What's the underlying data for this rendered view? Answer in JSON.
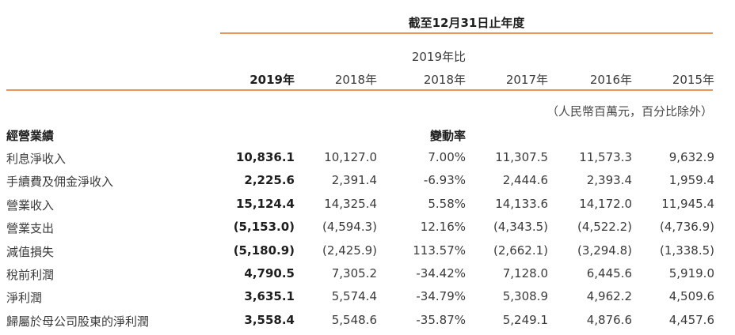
{
  "header": {
    "period": "截至12月31日止年度",
    "compare_top": "2019年比",
    "columns": [
      "2019年",
      "2018年",
      "2018年",
      "2017年",
      "2016年",
      "2015年"
    ],
    "unit": "（人民幣百萬元，百分比除外）"
  },
  "section": {
    "title": "經營業績",
    "change_label": "變動率"
  },
  "rows": [
    {
      "label": "利息淨收入",
      "v2019": "10,836.1",
      "v2018": "10,127.0",
      "change": "7.00%",
      "v2017": "11,307.5",
      "v2016": "11,573.3",
      "v2015": "9,632.9"
    },
    {
      "label": "手續費及佣金淨收入",
      "v2019": "2,225.6",
      "v2018": "2,391.4",
      "change": "-6.93%",
      "v2017": "2,444.6",
      "v2016": "2,393.4",
      "v2015": "1,959.4"
    },
    {
      "label": "營業收入",
      "v2019": "15,124.4",
      "v2018": "14,325.4",
      "change": "5.58%",
      "v2017": "14,133.6",
      "v2016": "14,172.0",
      "v2015": "11,945.4"
    },
    {
      "label": "營業支出",
      "v2019": "(5,153.0)",
      "v2018": "(4,594.3)",
      "change": "12.16%",
      "v2017": "(4,343.5)",
      "v2016": "(4,522.2)",
      "v2015": "(4,736.9)"
    },
    {
      "label": "減值損失",
      "v2019": "(5,180.9)",
      "v2018": "(2,425.9)",
      "change": "113.57%",
      "v2017": "(2,662.1)",
      "v2016": "(3,294.8)",
      "v2015": "(1,338.5)"
    },
    {
      "label": "稅前利潤",
      "v2019": "4,790.5",
      "v2018": "7,305.2",
      "change": "-34.42%",
      "v2017": "7,128.0",
      "v2016": "6,445.6",
      "v2015": "5,919.0"
    },
    {
      "label": "淨利潤",
      "v2019": "3,635.1",
      "v2018": "5,574.4",
      "change": "-34.79%",
      "v2017": "5,308.9",
      "v2016": "4,962.2",
      "v2015": "4,509.6"
    },
    {
      "label": "歸屬於母公司股東的淨利潤",
      "v2019": "3,558.4",
      "v2018": "5,548.6",
      "change": "-35.87%",
      "v2017": "5,249.1",
      "v2016": "4,876.6",
      "v2015": "4,457.6"
    }
  ],
  "colors": {
    "accent": "#e8955a",
    "text": "#3a3a3a",
    "strong": "#1e1e1e"
  }
}
